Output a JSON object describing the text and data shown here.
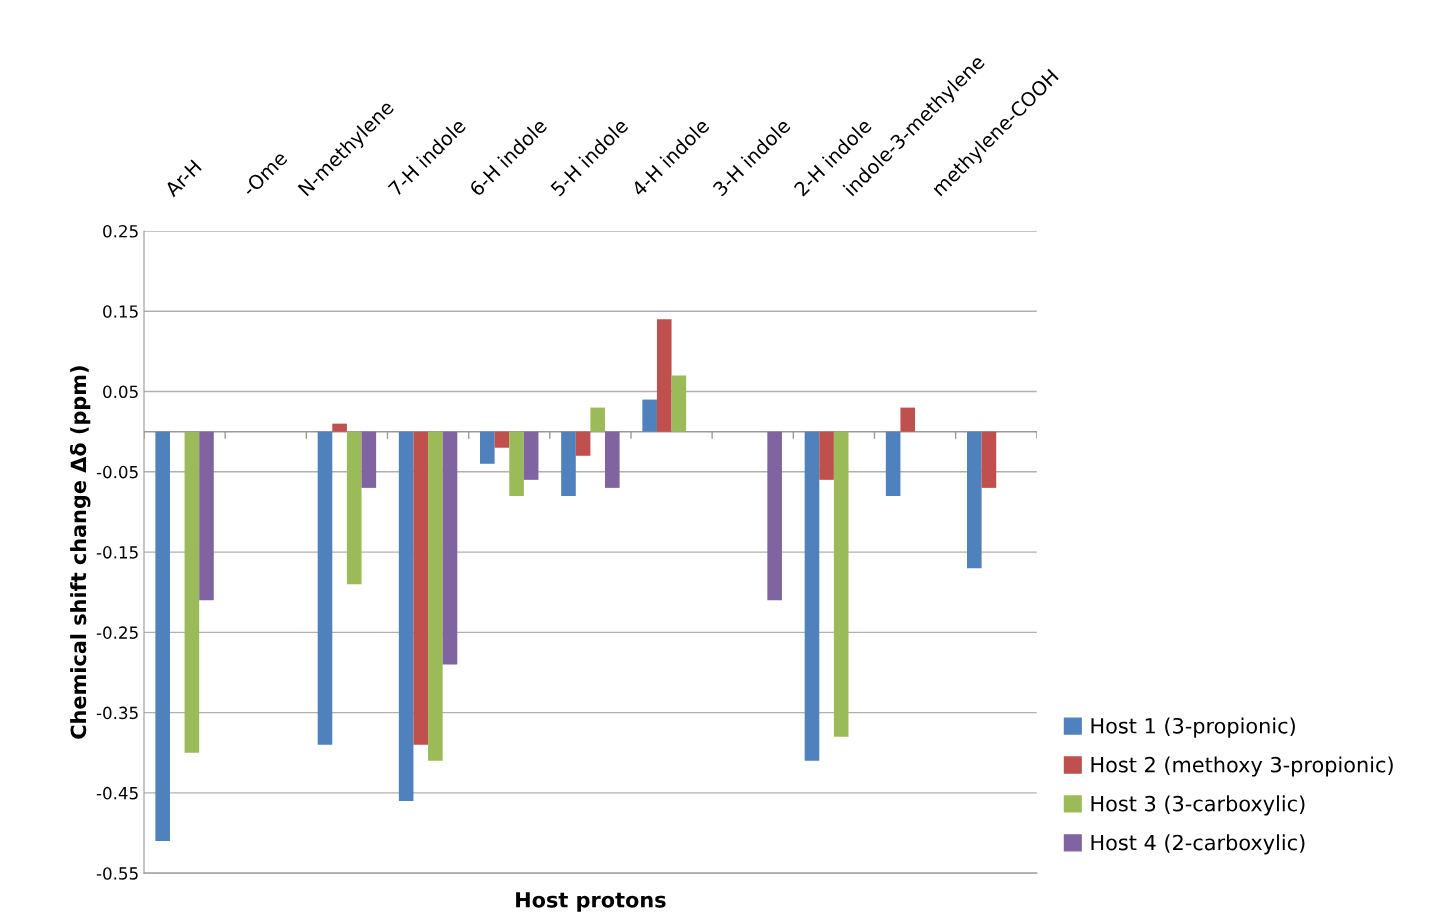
{
  "chart_data": {
    "type": "bar",
    "xlabel": "Host protons",
    "ylabel": "Chemical shift change Δδ (ppm)",
    "categories": [
      "Ar-H",
      "-Ome",
      "N-methylene",
      "7-H indole",
      "6-H indole",
      "5-H indole",
      "4-H indole",
      "3-H indole",
      "2-H indole",
      "indole-3-methylene",
      "methylene-COOH"
    ],
    "series": [
      {
        "name": "Host 1 (3-propionic)",
        "color": "#4f81bd",
        "values": [
          -0.51,
          null,
          -0.39,
          -0.46,
          -0.04,
          -0.08,
          0.04,
          null,
          -0.41,
          -0.08,
          -0.17
        ]
      },
      {
        "name": "Host 2 (methoxy 3-propionic)",
        "color": "#c0504d",
        "values": [
          null,
          null,
          0.01,
          -0.39,
          -0.02,
          -0.03,
          0.14,
          null,
          -0.06,
          0.03,
          -0.07
        ]
      },
      {
        "name": "Host 3 (3-carboxylic)",
        "color": "#9bbb59",
        "values": [
          -0.4,
          null,
          -0.19,
          -0.41,
          -0.08,
          0.03,
          0.07,
          null,
          -0.38,
          null,
          null
        ]
      },
      {
        "name": "Host 4 (2-carboxylic)",
        "color": "#8064a2",
        "values": [
          -0.21,
          null,
          -0.07,
          -0.29,
          -0.06,
          -0.07,
          null,
          -0.21,
          null,
          null,
          null
        ]
      }
    ],
    "ylim": [
      -0.55,
      0.25
    ],
    "yticks": [
      {
        "value": -0.55,
        "label": "-0.55"
      },
      {
        "value": -0.45,
        "label": "-0.45"
      },
      {
        "value": -0.35,
        "label": "-0.35"
      },
      {
        "value": -0.25,
        "label": "-0.25"
      },
      {
        "value": -0.15,
        "label": "-0.15"
      },
      {
        "value": -0.05,
        "label": "-0.05"
      },
      0.05,
      0.15,
      0.25
    ],
    "grid": "y",
    "legend": "bottom right"
  }
}
